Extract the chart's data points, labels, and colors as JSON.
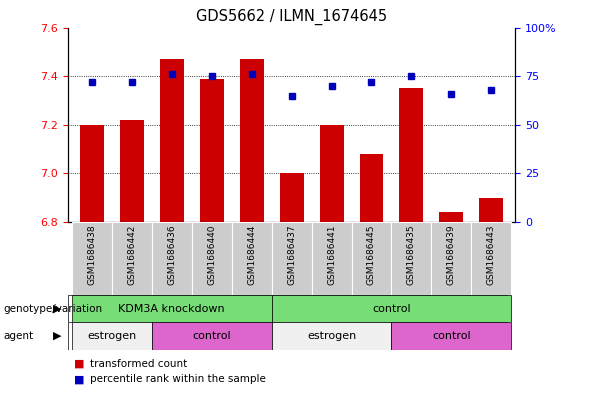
{
  "title": "GDS5662 / ILMN_1674645",
  "samples": [
    "GSM1686438",
    "GSM1686442",
    "GSM1686436",
    "GSM1686440",
    "GSM1686444",
    "GSM1686437",
    "GSM1686441",
    "GSM1686445",
    "GSM1686435",
    "GSM1686439",
    "GSM1686443"
  ],
  "red_values": [
    7.2,
    7.22,
    7.47,
    7.39,
    7.47,
    7.0,
    7.2,
    7.08,
    7.35,
    6.84,
    6.9
  ],
  "blue_values": [
    72,
    72,
    76,
    75,
    76,
    65,
    70,
    72,
    75,
    66,
    68
  ],
  "ylim_left": [
    6.8,
    7.6
  ],
  "ylim_right": [
    0,
    100
  ],
  "yticks_left": [
    6.8,
    7.0,
    7.2,
    7.4,
    7.6
  ],
  "yticks_right": [
    0,
    25,
    50,
    75,
    100
  ],
  "ytick_labels_right": [
    "0",
    "25",
    "50",
    "75",
    "100%"
  ],
  "bar_color": "#cc0000",
  "dot_color": "#0000bb",
  "bar_baseline": 6.8,
  "genotype_groups": [
    {
      "label": "KDM3A knockdown",
      "start": 0,
      "end": 5,
      "color": "#77dd77"
    },
    {
      "label": "control",
      "start": 5,
      "end": 11,
      "color": "#77dd77"
    }
  ],
  "agent_groups": [
    {
      "label": "estrogen",
      "start": 0,
      "end": 2,
      "color": "#f0f0f0"
    },
    {
      "label": "control",
      "start": 2,
      "end": 5,
      "color": "#dd66cc"
    },
    {
      "label": "estrogen",
      "start": 5,
      "end": 8,
      "color": "#f0f0f0"
    },
    {
      "label": "control",
      "start": 8,
      "end": 11,
      "color": "#dd66cc"
    }
  ],
  "bg_color": "#ffffff",
  "label_fontsize": 8,
  "title_fontsize": 10.5
}
